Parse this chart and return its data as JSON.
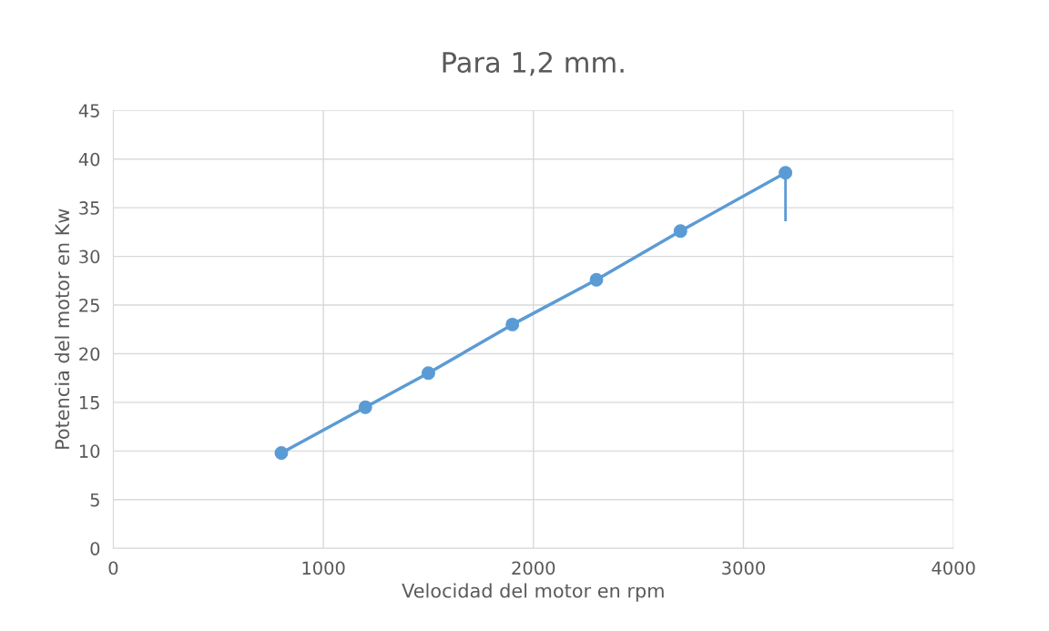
{
  "chart_data": {
    "type": "line",
    "title": "Para 1,2 mm.",
    "xlabel": "Velocidad del motor en rpm",
    "ylabel": "Potencia del motor en Kw",
    "x": [
      800,
      1200,
      1500,
      1900,
      2300,
      2700,
      3200
    ],
    "series": [
      {
        "color": "#5b9bd5",
        "values": [
          9.8,
          14.5,
          18.0,
          23.0,
          27.6,
          32.6,
          38.6
        ],
        "errors": [
          null,
          null,
          null,
          null,
          null,
          null,
          [
            33.6,
            38.6
          ]
        ]
      }
    ],
    "xlim": [
      0,
      4000
    ],
    "xticks": [
      0,
      1000,
      2000,
      3000,
      4000
    ],
    "ylim": [
      0,
      45
    ],
    "yticks": [
      0,
      5,
      10,
      15,
      20,
      25,
      30,
      35,
      40,
      45
    ],
    "grid": true,
    "marker": "circle",
    "line_style": "solid"
  }
}
